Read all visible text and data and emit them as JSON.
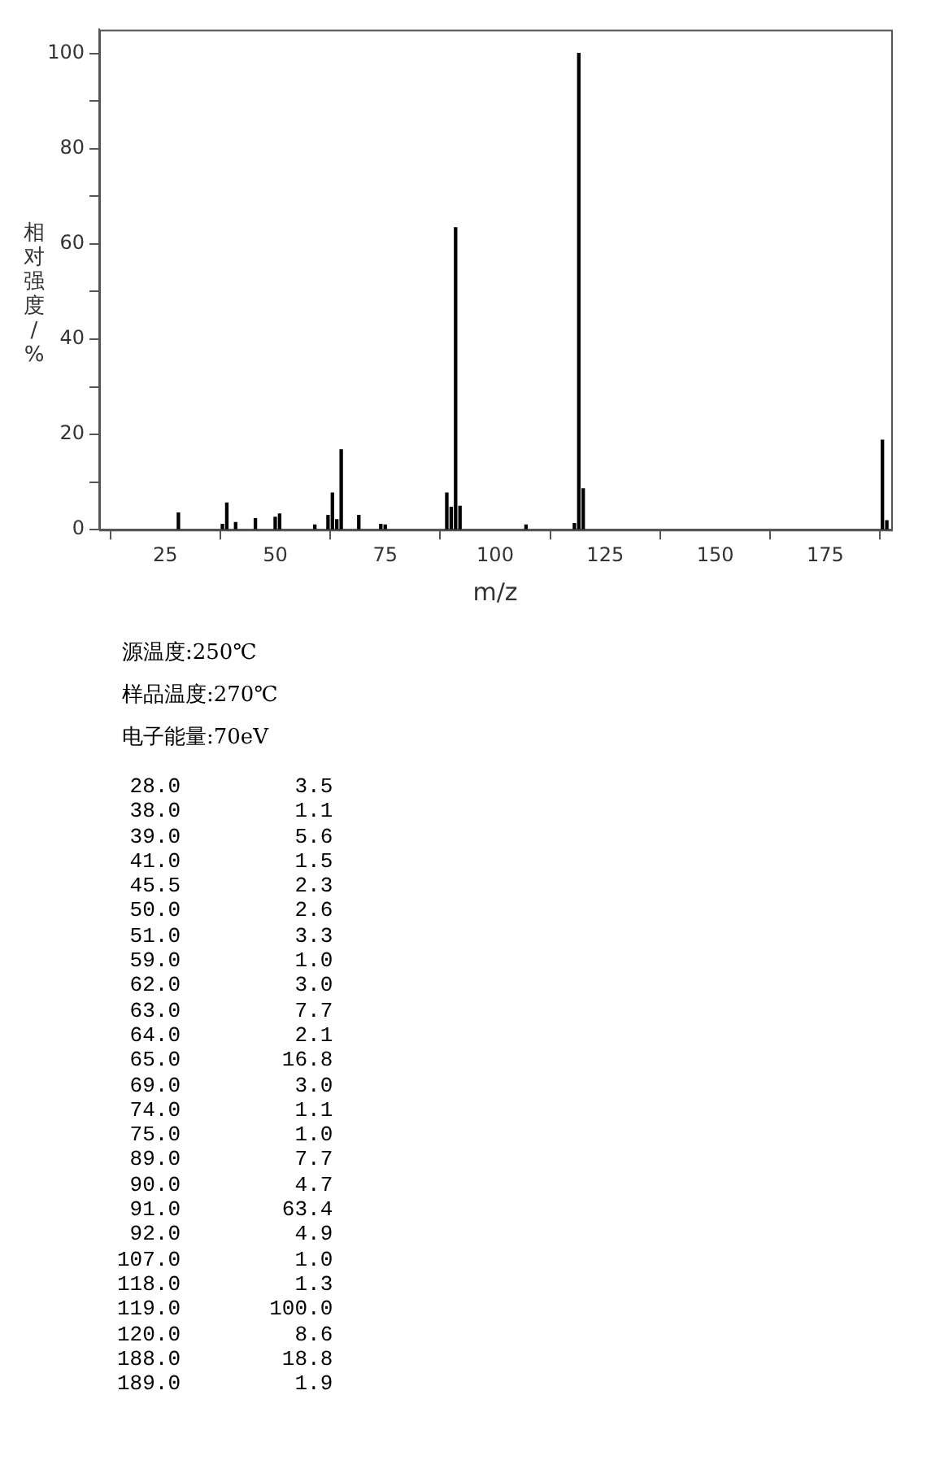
{
  "chart_data": {
    "type": "bar",
    "xlabel": "m/z",
    "ylabel": "相对强度/%",
    "x": [
      28,
      38,
      39,
      41,
      45.5,
      50,
      51,
      59,
      62,
      63,
      64,
      65,
      69,
      74,
      75,
      89,
      90,
      91,
      92,
      107,
      118,
      119,
      120,
      188,
      189
    ],
    "values": [
      3.5,
      1.1,
      5.6,
      1.5,
      2.3,
      2.6,
      3.3,
      1.0,
      3.0,
      7.7,
      2.1,
      16.8,
      3.0,
      1.1,
      1.0,
      7.7,
      4.7,
      63.4,
      4.9,
      1.0,
      1.3,
      100.0,
      8.6,
      18.8,
      1.9
    ],
    "color": "#000000",
    "xlim": [
      10,
      190
    ],
    "xticks": [
      25,
      50,
      75,
      100,
      125,
      150,
      175
    ],
    "ylim": [
      0,
      105
    ],
    "yticks": [
      0,
      {
        "value": 10,
        "label": null
      },
      20,
      {
        "value": 30,
        "label": null
      },
      40,
      {
        "value": 50,
        "label": null
      },
      60,
      {
        "value": 70,
        "label": null
      },
      80,
      {
        "value": 90,
        "label": null
      },
      100
    ],
    "grid": false,
    "annotations": [
      "源温度:250℃",
      "样品温度:270℃",
      "电子能量:70eV",
      " 28.0         3.5",
      " 38.0         1.1",
      " 39.0         5.6",
      " 41.0         1.5",
      " 45.5         2.3",
      " 50.0         2.6",
      " 51.0         3.3",
      " 59.0         1.0",
      " 62.0         3.0",
      " 63.0         7.7",
      " 64.0         2.1",
      " 65.0        16.8",
      " 69.0         3.0",
      " 74.0         1.1",
      " 75.0         1.0",
      " 89.0         7.7",
      " 90.0         4.7",
      " 91.0        63.4",
      " 92.0         4.9",
      "107.0         1.0",
      "118.0         1.3",
      "119.0       100.0",
      "120.0         8.6",
      "188.0        18.8",
      "189.0         1.9"
    ]
  }
}
